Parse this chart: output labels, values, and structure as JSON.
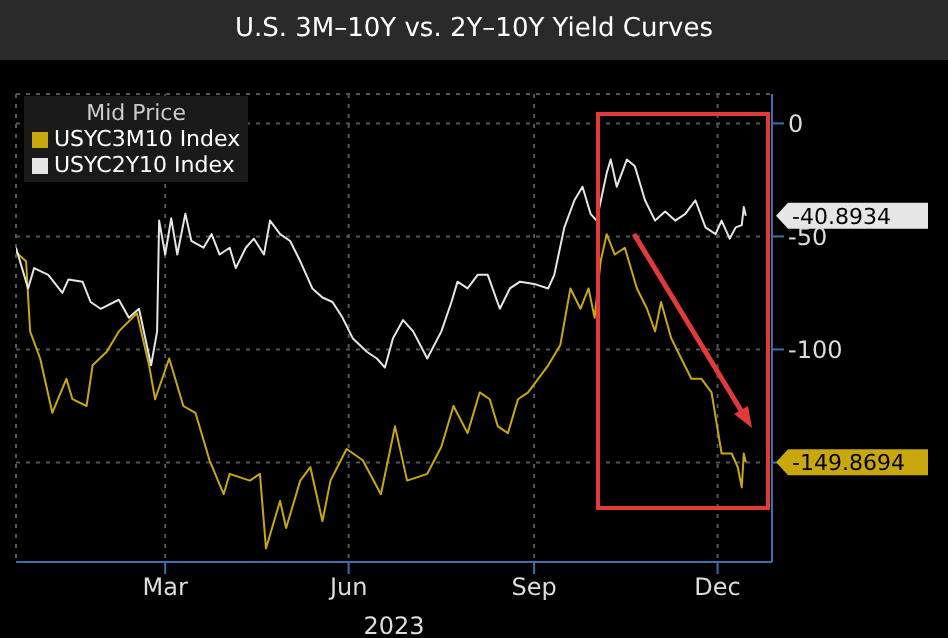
{
  "chart_data": {
    "type": "line",
    "title": "U.S. 3M–10Y vs. 2Y–10Y Yield Curves",
    "xlabel": "2023",
    "legend_title": "Mid Price",
    "legend": "top left",
    "grid": true,
    "marker": "none",
    "line_style": "solid",
    "xlim": [
      "2023-01-01",
      "2024-01-11"
    ],
    "xticks": [
      {
        "value": "2023-03-16",
        "label": "Mar"
      },
      {
        "value": "2023-06-15",
        "label": "Jun"
      },
      {
        "value": "2023-09-15",
        "label": "Sep"
      },
      {
        "value": "2023-12-15",
        "label": "Dec"
      }
    ],
    "ylim": [
      -194,
      13
    ],
    "yticks": [
      0,
      -50,
      -100,
      {
        "value": -150,
        "label": null
      }
    ],
    "series": [
      {
        "name": "USYC3M10 Index",
        "color": "#c9a80e",
        "x": [
          "2023-01-01",
          "2023-01-06",
          "2023-01-08",
          "2023-01-13",
          "2023-01-19",
          "2023-01-26",
          "2023-01-29",
          "2023-02-05",
          "2023-02-08",
          "2023-02-15",
          "2023-02-21",
          "2023-03-02",
          "2023-03-08",
          "2023-03-11",
          "2023-03-18",
          "2023-03-25",
          "2023-03-31",
          "2023-04-07",
          "2023-04-14",
          "2023-04-17",
          "2023-04-27",
          "2023-05-02",
          "2023-05-05",
          "2023-05-12",
          "2023-05-15",
          "2023-05-22",
          "2023-05-27",
          "2023-06-02",
          "2023-06-06",
          "2023-06-14",
          "2023-06-22",
          "2023-07-01",
          "2023-07-08",
          "2023-07-14",
          "2023-07-24",
          "2023-07-31",
          "2023-08-06",
          "2023-08-13",
          "2023-08-19",
          "2023-08-24",
          "2023-08-28",
          "2023-09-02",
          "2023-09-07",
          "2023-09-12",
          "2023-09-22",
          "2023-09-28",
          "2023-10-03",
          "2023-10-08",
          "2023-10-12",
          "2023-10-15",
          "2023-10-18",
          "2023-10-21",
          "2023-10-25",
          "2023-10-30",
          "2023-11-05",
          "2023-11-10",
          "2023-11-14",
          "2023-11-17",
          "2023-11-22",
          "2023-11-27",
          "2023-12-02",
          "2023-12-07",
          "2023-12-12",
          "2023-12-17",
          "2023-12-22",
          "2023-12-25",
          "2023-12-27",
          "2023-12-28",
          "2023-12-29"
        ],
        "values": [
          -57,
          -61,
          -92,
          -104,
          -128,
          -113,
          -122,
          -125,
          -107,
          -101,
          -92,
          -84,
          -107,
          -122,
          -104,
          -125,
          -128,
          -149,
          -164,
          -155,
          -158,
          -155,
          -188,
          -167,
          -179,
          -158,
          -152,
          -176,
          -158,
          -144,
          -149,
          -164,
          -134,
          -158,
          -155,
          -143,
          -125,
          -137,
          -119,
          -122,
          -134,
          -137,
          -122,
          -119,
          -107,
          -98,
          -73,
          -82,
          -73,
          -86,
          -61,
          -49,
          -58,
          -55,
          -73,
          -82,
          -92,
          -79,
          -95,
          -104,
          -113,
          -113,
          -119,
          -146,
          -146,
          -152,
          -161,
          -146,
          -149.8694
        ]
      },
      {
        "name": "USYC2Y10 Index",
        "color": "#e6e6e6",
        "x": [
          "2023-01-01",
          "2023-01-07",
          "2023-01-10",
          "2023-01-17",
          "2023-01-24",
          "2023-01-27",
          "2023-02-03",
          "2023-02-07",
          "2023-02-12",
          "2023-02-21",
          "2023-02-26",
          "2023-03-03",
          "2023-03-09",
          "2023-03-12",
          "2023-03-13",
          "2023-03-16",
          "2023-03-19",
          "2023-03-22",
          "2023-03-26",
          "2023-03-29",
          "2023-04-04",
          "2023-04-08",
          "2023-04-12",
          "2023-04-17",
          "2023-04-20",
          "2023-04-25",
          "2023-04-29",
          "2023-05-04",
          "2023-05-07",
          "2023-05-12",
          "2023-05-17",
          "2023-05-22",
          "2023-05-28",
          "2023-06-02",
          "2023-06-07",
          "2023-06-12",
          "2023-06-17",
          "2023-06-24",
          "2023-06-29",
          "2023-07-03",
          "2023-07-07",
          "2023-07-12",
          "2023-07-17",
          "2023-07-24",
          "2023-07-31",
          "2023-08-05",
          "2023-08-08",
          "2023-08-13",
          "2023-08-18",
          "2023-08-23",
          "2023-08-29",
          "2023-09-03",
          "2023-09-08",
          "2023-09-15",
          "2023-09-22",
          "2023-09-25",
          "2023-09-30",
          "2023-10-05",
          "2023-10-09",
          "2023-10-13",
          "2023-10-16",
          "2023-10-21",
          "2023-10-23",
          "2023-10-26",
          "2023-10-31",
          "2023-11-04",
          "2023-11-09",
          "2023-11-14",
          "2023-11-19",
          "2023-11-24",
          "2023-11-29",
          "2023-12-04",
          "2023-12-09",
          "2023-12-14",
          "2023-12-17",
          "2023-12-21",
          "2023-12-24",
          "2023-12-27",
          "2023-12-28",
          "2023-12-29"
        ],
        "values": [
          -55,
          -73,
          -64,
          -67,
          -75,
          -69,
          -70,
          -79,
          -82,
          -78,
          -86,
          -82,
          -107,
          -92,
          -43,
          -58,
          -42,
          -58,
          -40,
          -52,
          -55,
          -49,
          -58,
          -55,
          -64,
          -55,
          -51,
          -58,
          -43,
          -49,
          -52,
          -61,
          -73,
          -77,
          -79,
          -86,
          -95,
          -101,
          -104,
          -108,
          -95,
          -87,
          -92,
          -104,
          -92,
          -79,
          -70,
          -73,
          -67,
          -67,
          -82,
          -73,
          -70,
          -71,
          -73,
          -67,
          -46,
          -34,
          -28,
          -40,
          -43,
          -22,
          -16,
          -28,
          -16,
          -19,
          -34,
          -43,
          -39,
          -43,
          -40,
          -34,
          -46,
          -49,
          -43,
          -51,
          -46,
          -45,
          -37,
          -40.8934
        ]
      }
    ],
    "annotations": [
      {
        "text": "-149.8694",
        "x": "2023-12-29",
        "y": -149.8694
      },
      {
        "text": "-40.8934",
        "x": "2023-12-29",
        "y": -40.8934
      }
    ]
  }
}
